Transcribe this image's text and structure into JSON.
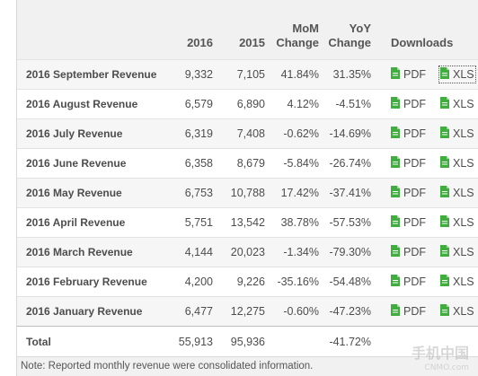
{
  "header": {
    "col_2016": "2016",
    "col_2015": "2015",
    "mom_line1": "MoM",
    "mom_line2": "Change",
    "yoy_line1": "YoY",
    "yoy_line2": "Change",
    "downloads": "Downloads"
  },
  "rows": [
    {
      "label": "2016 September Revenue",
      "v2016": "9,332",
      "v2015": "7,105",
      "mom": "41.84%",
      "yoy": "31.35%",
      "pdf": "PDF",
      "xls": "XLS"
    },
    {
      "label": "2016 August Revenue",
      "v2016": "6,579",
      "v2015": "6,890",
      "mom": "4.12%",
      "yoy": "-4.51%",
      "pdf": "PDF",
      "xls": "XLS"
    },
    {
      "label": "2016 July Revenue",
      "v2016": "6,319",
      "v2015": "7,408",
      "mom": "-0.62%",
      "yoy": "-14.69%",
      "pdf": "PDF",
      "xls": "XLS"
    },
    {
      "label": "2016 June Revenue",
      "v2016": "6,358",
      "v2015": "8,679",
      "mom": "-5.84%",
      "yoy": "-26.74%",
      "pdf": "PDF",
      "xls": "XLS"
    },
    {
      "label": "2016 May Revenue",
      "v2016": "6,753",
      "v2015": "10,788",
      "mom": "17.42%",
      "yoy": "-37.41%",
      "pdf": "PDF",
      "xls": "XLS"
    },
    {
      "label": "2016 April Revenue",
      "v2016": "5,751",
      "v2015": "13,542",
      "mom": "38.78%",
      "yoy": "-57.53%",
      "pdf": "PDF",
      "xls": "XLS"
    },
    {
      "label": "2016 March Revenue",
      "v2016": "4,144",
      "v2015": "20,023",
      "mom": "-1.34%",
      "yoy": "-79.30%",
      "pdf": "PDF",
      "xls": "XLS"
    },
    {
      "label": "2016 February Revenue",
      "v2016": "4,200",
      "v2015": "9,226",
      "mom": "-35.16%",
      "yoy": "-54.48%",
      "pdf": "PDF",
      "xls": "XLS"
    },
    {
      "label": "2016 January Revenue",
      "v2016": "6,477",
      "v2015": "12,275",
      "mom": "-0.60%",
      "yoy": "-47.23%",
      "pdf": "PDF",
      "xls": "XLS"
    }
  ],
  "total": {
    "label": "Total",
    "v2016": "55,913",
    "v2015": "95,936",
    "mom": "",
    "yoy": "-41.72%"
  },
  "note": "Note: Reported monthly revenue were consolidated information.",
  "watermark": {
    "text": "手机中国",
    "sub": "CNMO.com"
  },
  "colors": {
    "icon_green": "#3fae3f",
    "header_bg": "#f1f1f1",
    "row_alt_bg": "#f6f6f6"
  },
  "icons": {
    "pdf": "file-icon",
    "xls": "file-icon"
  }
}
